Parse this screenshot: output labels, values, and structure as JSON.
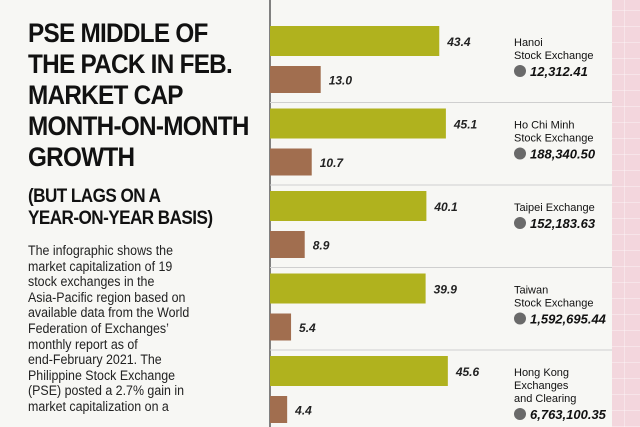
{
  "headline": [
    "PSE MIDDLE OF",
    "THE PACK IN FEB.",
    "MARKET CAP",
    "MONTH-ON-MONTH",
    "GROWTH"
  ],
  "subhead": [
    "(BUT LAGS ON A",
    "YEAR-ON-YEAR BASIS)"
  ],
  "body_lines": [
    "The infographic shows the",
    "market capitalization of 19",
    "stock exchanges in the",
    "Asia-Pacific region based on",
    "available data from the World",
    "Federation of Exchanges’",
    "monthly report as of",
    "end-February 2021. The",
    "Philippine Stock Exchange",
    "(PSE) posted a 2.7% gain in",
    "market capitalization on a"
  ],
  "colors": {
    "background": "#f3d6dd",
    "panel": "#f7f7f4",
    "olive_bar": "#b0b21e",
    "brown_bar": "#a16e4f",
    "circle": "#6a6a6a"
  },
  "chart_data": {
    "type": "bar",
    "orientation": "horizontal",
    "categories": [
      [
        "Hanoi",
        "Stock Exchange"
      ],
      [
        "Ho Chi Minh",
        "Stock Exchange"
      ],
      [
        "Taipei Exchange"
      ],
      [
        "Taiwan",
        "Stock Exchange"
      ],
      [
        "Hong Kong",
        "Exchanges",
        "and Clearing"
      ]
    ],
    "market_cap": [
      "12,312.41",
      "188,340.50",
      "152,183.63",
      "1,592,695.44",
      "6,763,100.35"
    ],
    "series": [
      {
        "color": "#b0b21e",
        "values": [
          43.4,
          45.1,
          40.1,
          39.9,
          45.6
        ]
      },
      {
        "color": "#a16e4f",
        "values": [
          13.0,
          10.7,
          8.9,
          5.4,
          4.4
        ]
      }
    ],
    "value_labels": [
      [
        "43.4",
        "13.0"
      ],
      [
        "45.1",
        "10.7"
      ],
      [
        "40.1",
        "8.9"
      ],
      [
        "39.9",
        "5.4"
      ],
      [
        "45.6",
        "4.4"
      ]
    ]
  }
}
